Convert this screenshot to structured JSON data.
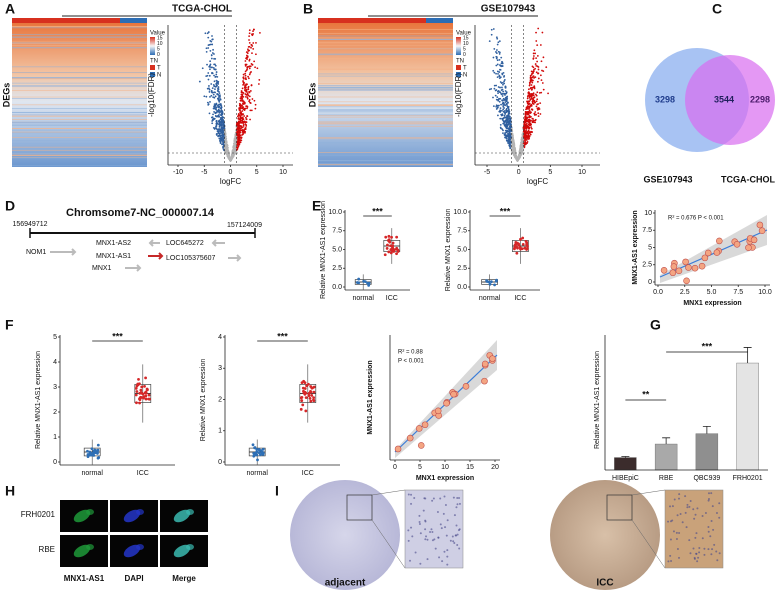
{
  "panel_labels": [
    "A",
    "B",
    "C",
    "D",
    "E",
    "F",
    "G",
    "H",
    "I"
  ],
  "A": {
    "title": "TCGA-CHOL",
    "heatmap": {
      "y_label": "DEGs",
      "legend_value": "Value",
      "legend_ticks": [
        "15",
        "10",
        "5",
        "0"
      ],
      "legend_tn": "TN",
      "groups": [
        "T",
        "N"
      ]
    },
    "volcano": {
      "x_label": "logFC",
      "y_label": "-log10(FDR)",
      "x_ticks": [
        "-10",
        "-5",
        "0",
        "5",
        "10"
      ]
    }
  },
  "B": {
    "title": "GSE107943",
    "heatmap": {
      "y_label": "DEGs",
      "legend_value": "Value",
      "legend_ticks": [
        "15",
        "10",
        "5",
        "0"
      ],
      "legend_tn": "TN",
      "groups": [
        "T",
        "N"
      ]
    },
    "volcano": {
      "x_label": "logFC",
      "y_label": "-log10(FDR)",
      "x_ticks": [
        "-5",
        "0",
        "5",
        "10"
      ],
      "y_ticks": [
        "0",
        "10",
        "20"
      ]
    }
  },
  "C": {
    "left_only": "3298",
    "both": "3544",
    "right_only": "2298",
    "sets": [
      "GSE107943",
      "TCGA-CHOL"
    ]
  },
  "D": {
    "title": "Chromsome7-NC_000007.14",
    "start": "156949712",
    "end": "157124009",
    "genes": [
      "NOM1",
      "MNX1-AS2",
      "LOC645272",
      "MNX1-AS1",
      "LOC105375607",
      "MNX1"
    ]
  },
  "E": {
    "plots": [
      {
        "y_label": "Relative MNX1-AS1 expression",
        "y_ticks": [
          "0.0",
          "2.5",
          "5.0",
          "7.5",
          "10.0"
        ],
        "groups": [
          "normal",
          "ICC"
        ],
        "significance": "***"
      },
      {
        "y_label": "Relative MNX1 expression",
        "y_ticks": [
          "0.0",
          "2.5",
          "5.0",
          "7.5",
          "10.0"
        ],
        "groups": [
          "normal",
          "ICC"
        ],
        "significance": "***"
      }
    ],
    "correlation": {
      "y_label": "MNX1-AS1 expression",
      "x_label": "MNX1 expression",
      "y_ticks": [
        "0",
        "2.5",
        "5",
        "7.5",
        "10"
      ],
      "x_ticks": [
        "0.0",
        "2.5",
        "5.0",
        "7.5",
        "10.0"
      ],
      "annotation": "R² = 0.676  P < 0.001"
    }
  },
  "F": {
    "plots": [
      {
        "y_label": "Relative MNX1-AS1 expression",
        "y_ticks": [
          "0",
          "1",
          "2",
          "3",
          "4",
          "5"
        ],
        "groups": [
          "normal",
          "ICC"
        ],
        "significance": "***"
      },
      {
        "y_label": "Relative MNX1 expression",
        "y_ticks": [
          "0",
          "1",
          "2",
          "3",
          "4"
        ],
        "groups": [
          "normal",
          "ICC"
        ],
        "significance": "***"
      }
    ],
    "correlation": {
      "y_label": "MNX1-AS1 expression",
      "x_label": "MNX1 expression",
      "x_ticks": [
        "0",
        "5",
        "10",
        "15",
        "20"
      ],
      "annotation": [
        "R² = 0.88",
        "P < 0.001"
      ]
    }
  },
  "G": {
    "y_label": "Relative MNX1-AS1 expression",
    "categories": [
      "HIBEpiC",
      "RBE",
      "QBC939",
      "FRH0201"
    ],
    "values": [
      1.2,
      2.5,
      3.5,
      10.3
    ],
    "errors": [
      0.1,
      0.6,
      0.7,
      1.5
    ],
    "colors": [
      "#3b2c2c",
      "#a9a9a9",
      "#8f8f8f",
      "#e4e4e4"
    ],
    "ylim": [
      0,
      13
    ],
    "significance": [
      "**",
      "***"
    ]
  },
  "H": {
    "rows": [
      "FRH0201",
      "RBE"
    ],
    "channels": [
      "MNX1-AS1",
      "DAPI",
      "Merge"
    ]
  },
  "I": {
    "groups": [
      "adjacent",
      "ICC"
    ]
  }
}
